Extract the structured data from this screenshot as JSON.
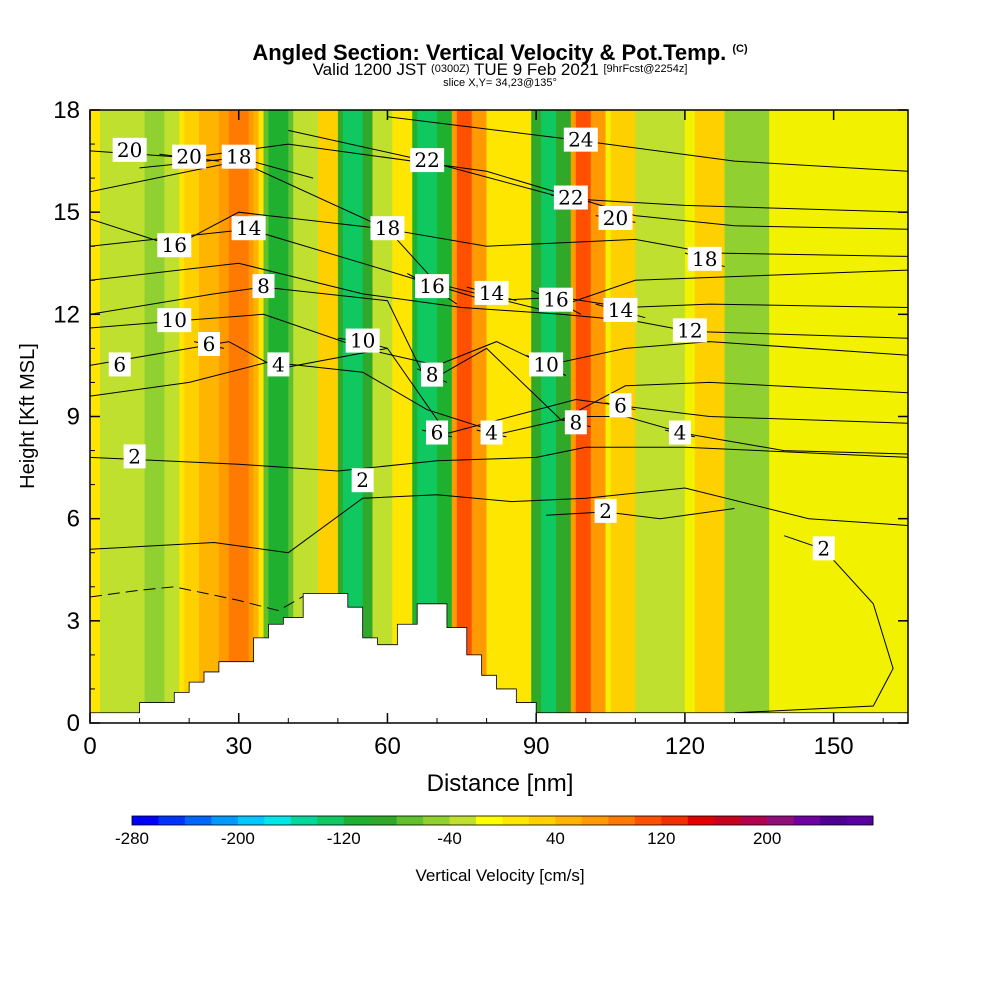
{
  "title": {
    "main": "Angled Section: Vertical Velocity & Pot.Temp.",
    "main_suffix": "(C)",
    "sub_a": "Valid 1200 JST",
    "sub_b": "(0300Z)",
    "sub_c": "TUE 9 Feb 2021",
    "sub_d": "[9hrFcst@2254z]",
    "slice": "slice X,Y= 34,23@135°"
  },
  "chart_data": {
    "type": "heatmap",
    "xlabel": "Distance [nm]",
    "ylabel": "Height [Kft MSL]",
    "xlim": [
      0,
      165
    ],
    "ylim": [
      0,
      18
    ],
    "x_ticks": [
      "0",
      "30",
      "60",
      "90",
      "120",
      "150"
    ],
    "y_ticks": [
      "0",
      "3",
      "6",
      "9",
      "12",
      "15",
      "18"
    ],
    "colorbar": {
      "label": "Vertical Velocity [cm/s]",
      "range": [
        -280,
        280
      ],
      "ticks": [
        "-280",
        "-200",
        "-120",
        "-40",
        "40",
        "120",
        "200"
      ],
      "colors": [
        "#0000ff",
        "#0033ff",
        "#0066ff",
        "#0099ff",
        "#00c8ff",
        "#00e6e6",
        "#00d79a",
        "#10c860",
        "#20b030",
        "#30a82a",
        "#60c030",
        "#90d030",
        "#c0e030",
        "#ffff00",
        "#ffe600",
        "#ffd000",
        "#ffb400",
        "#ff9a00",
        "#ff7a00",
        "#ff5000",
        "#f03000",
        "#e00000",
        "#c80020",
        "#b00050",
        "#90107a",
        "#7000a0",
        "#500090",
        "#5a00a0"
      ]
    },
    "velocity_bands": [
      {
        "x": 0,
        "w": 165,
        "value": 10,
        "color": "#f2f200"
      },
      {
        "x": 0,
        "w": 70,
        "value": 20,
        "color": "#ffe600"
      },
      {
        "x": 2,
        "w": 16,
        "value": -30,
        "color": "#c0e030"
      },
      {
        "x": 11,
        "w": 4,
        "value": -40,
        "color": "#90d030"
      },
      {
        "x": 19,
        "w": 8,
        "value": 50,
        "color": "#ffd000"
      },
      {
        "x": 22,
        "w": 12,
        "value": 60,
        "color": "#ffb400"
      },
      {
        "x": 26,
        "w": 7,
        "value": 80,
        "color": "#ff9a00"
      },
      {
        "x": 28,
        "w": 4,
        "value": 100,
        "color": "#ff7a00"
      },
      {
        "x": 35,
        "w": 8,
        "value": -60,
        "color": "#60c030"
      },
      {
        "x": 36,
        "w": 4,
        "value": -90,
        "color": "#20b030"
      },
      {
        "x": 41,
        "w": 5,
        "value": -30,
        "color": "#c0e030"
      },
      {
        "x": 46,
        "w": 4,
        "value": 40,
        "color": "#ffd000"
      },
      {
        "x": 50,
        "w": 7,
        "value": -70,
        "color": "#30a82a"
      },
      {
        "x": 51,
        "w": 4,
        "value": -100,
        "color": "#10c860"
      },
      {
        "x": 57,
        "w": 4,
        "value": -20,
        "color": "#c0e030"
      },
      {
        "x": 61,
        "w": 3,
        "value": 30,
        "color": "#ffe600"
      },
      {
        "x": 65,
        "w": 8,
        "value": -70,
        "color": "#20b030"
      },
      {
        "x": 66,
        "w": 4,
        "value": -110,
        "color": "#10c860"
      },
      {
        "x": 73,
        "w": 7,
        "value": 70,
        "color": "#ff9a00"
      },
      {
        "x": 74,
        "w": 3,
        "value": 110,
        "color": "#ff5000"
      },
      {
        "x": 80,
        "w": 9,
        "value": 20,
        "color": "#ffe600"
      },
      {
        "x": 89,
        "w": 8,
        "value": -70,
        "color": "#30a82a"
      },
      {
        "x": 91,
        "w": 3,
        "value": -100,
        "color": "#10c860"
      },
      {
        "x": 97,
        "w": 7,
        "value": 80,
        "color": "#ff9a00"
      },
      {
        "x": 98,
        "w": 3,
        "value": 120,
        "color": "#ff5000"
      },
      {
        "x": 105,
        "w": 12,
        "value": 30,
        "color": "#ffd000"
      },
      {
        "x": 110,
        "w": 10,
        "value": -30,
        "color": "#c0e030"
      },
      {
        "x": 122,
        "w": 6,
        "value": 40,
        "color": "#ffd000"
      },
      {
        "x": 128,
        "w": 9,
        "value": -40,
        "color": "#90d030"
      }
    ],
    "terrain_profile": [
      [
        0,
        0.3
      ],
      [
        10,
        0.6
      ],
      [
        17,
        0.9
      ],
      [
        20,
        1.2
      ],
      [
        23,
        1.5
      ],
      [
        26,
        1.8
      ],
      [
        30,
        1.8
      ],
      [
        33,
        2.5
      ],
      [
        36,
        2.9
      ],
      [
        39,
        3.1
      ],
      [
        43,
        3.8
      ],
      [
        52,
        3.4
      ],
      [
        55,
        2.5
      ],
      [
        58,
        2.3
      ],
      [
        62,
        2.9
      ],
      [
        66,
        3.5
      ],
      [
        72,
        2.8
      ],
      [
        76,
        2.0
      ],
      [
        79,
        1.4
      ],
      [
        82,
        1.0
      ],
      [
        86,
        0.6
      ],
      [
        90,
        0.3
      ],
      [
        165,
        0.3
      ]
    ],
    "isentropes_c": [
      {
        "level": "2",
        "label_at": [
          9,
          7.8
        ],
        "points": [
          [
            0,
            7.8
          ],
          [
            30,
            7.6
          ],
          [
            50,
            7.4
          ],
          [
            70,
            7.7
          ],
          [
            90,
            7.8
          ],
          [
            100,
            8.1
          ],
          [
            120,
            8.1
          ],
          [
            165,
            7.8
          ]
        ]
      },
      {
        "level": "2",
        "label_at": [
          55,
          7.1
        ],
        "points": [
          [
            0,
            5.1
          ],
          [
            25,
            5.3
          ],
          [
            40,
            5.0
          ],
          [
            55,
            6.6
          ],
          [
            70,
            6.7
          ],
          [
            85,
            6.5
          ],
          [
            100,
            6.6
          ],
          [
            120,
            6.9
          ],
          [
            145,
            6.0
          ],
          [
            165,
            5.8
          ]
        ]
      },
      {
        "level": "2",
        "label_at": [
          104,
          6.2
        ],
        "points": [
          [
            92,
            6.1
          ],
          [
            104,
            6.2
          ],
          [
            115,
            6.0
          ],
          [
            130,
            6.3
          ]
        ]
      },
      {
        "level": "2",
        "label_at": [
          148,
          5.1
        ],
        "points": [
          [
            140,
            5.5
          ],
          [
            148,
            5.1
          ],
          [
            158,
            3.5
          ],
          [
            162,
            1.6
          ],
          [
            158,
            0.5
          ],
          [
            130,
            0.3
          ]
        ]
      },
      {
        "level": "4",
        "label_at": [
          38,
          10.5
        ],
        "points": [
          [
            0,
            9.6
          ],
          [
            20,
            10.0
          ],
          [
            36,
            10.6
          ],
          [
            55,
            10.3
          ],
          [
            68,
            9.2
          ],
          [
            83,
            8.5
          ],
          [
            98,
            9.0
          ],
          [
            108,
            9.0
          ],
          [
            120,
            8.5
          ],
          [
            140,
            8.0
          ],
          [
            165,
            7.9
          ]
        ]
      },
      {
        "level": "6",
        "label_at": [
          6,
          10.5
        ],
        "points": [
          [
            0,
            10.5
          ],
          [
            20,
            11.0
          ],
          [
            28,
            11.2
          ],
          [
            38,
            10.4
          ],
          [
            60,
            11.0
          ],
          [
            72,
            8.5
          ],
          [
            85,
            9.0
          ],
          [
            98,
            9.5
          ],
          [
            108,
            9.3
          ],
          [
            125,
            9.0
          ],
          [
            165,
            8.8
          ]
        ]
      },
      {
        "level": "8",
        "label_at": [
          35,
          12.8
        ],
        "points": [
          [
            0,
            12.0
          ],
          [
            25,
            12.6
          ],
          [
            35,
            12.8
          ],
          [
            60,
            12.4
          ],
          [
            68,
            10.0
          ],
          [
            80,
            11.0
          ],
          [
            95,
            8.9
          ],
          [
            108,
            9.9
          ],
          [
            125,
            10.0
          ],
          [
            165,
            9.7
          ]
        ]
      },
      {
        "level": "10",
        "label_at": [
          17,
          11.8
        ],
        "points": [
          [
            0,
            11.6
          ],
          [
            17,
            11.8
          ],
          [
            35,
            12.0
          ],
          [
            55,
            11.0
          ],
          [
            70,
            10.5
          ],
          [
            82,
            11.2
          ],
          [
            92,
            10.5
          ],
          [
            108,
            11.0
          ],
          [
            125,
            11.2
          ],
          [
            165,
            10.8
          ]
        ]
      },
      {
        "level": "12",
        "label_at": [
          121,
          11.5
        ],
        "points": [
          [
            0,
            13.0
          ],
          [
            30,
            13.5
          ],
          [
            55,
            12.6
          ],
          [
            75,
            12.2
          ],
          [
            95,
            12.0
          ],
          [
            110,
            11.8
          ],
          [
            121,
            11.5
          ],
          [
            165,
            11.3
          ]
        ]
      },
      {
        "level": "14",
        "label_at": [
          32,
          14.5
        ],
        "points": [
          [
            0,
            14.0
          ],
          [
            32,
            14.5
          ],
          [
            55,
            13.5
          ],
          [
            80,
            12.4
          ],
          [
            95,
            12.5
          ],
          [
            108,
            12.2
          ],
          [
            125,
            12.3
          ],
          [
            165,
            12.2
          ]
        ]
      },
      {
        "level": "16",
        "label_at": [
          17,
          14.0
        ],
        "points": [
          [
            0,
            14.8
          ],
          [
            17,
            14.0
          ],
          [
            30,
            15.0
          ],
          [
            60,
            14.5
          ],
          [
            70,
            12.9
          ],
          [
            92,
            12.1
          ],
          [
            110,
            13.0
          ],
          [
            165,
            13.3
          ]
        ]
      },
      {
        "level": "18",
        "label_at": [
          60,
          14.5
        ],
        "points": [
          [
            0,
            15.6
          ],
          [
            30,
            16.5
          ],
          [
            60,
            14.5
          ],
          [
            80,
            14.0
          ],
          [
            110,
            14.2
          ],
          [
            125,
            13.8
          ],
          [
            165,
            13.7
          ]
        ]
      },
      {
        "level": "18",
        "label_at": [
          30,
          16.6
        ],
        "points": [
          [
            10,
            16.3
          ],
          [
            30,
            16.6
          ],
          [
            45,
            16.0
          ]
        ]
      },
      {
        "level": "20",
        "label_at": [
          8,
          16.8
        ],
        "points": [
          [
            0,
            16.8
          ],
          [
            20,
            16.6
          ],
          [
            40,
            17.0
          ],
          [
            80,
            16.2
          ],
          [
            110,
            14.9
          ],
          [
            130,
            14.6
          ],
          [
            165,
            14.5
          ]
        ]
      },
      {
        "level": "20",
        "label_at": [
          20,
          16.6
        ],
        "points": [
          [
            14,
            16.7
          ],
          [
            20,
            16.6
          ],
          [
            26,
            16.5
          ]
        ]
      },
      {
        "level": "22",
        "label_at": [
          68,
          16.5
        ],
        "points": [
          [
            40,
            17.4
          ],
          [
            68,
            16.5
          ],
          [
            96,
            15.4
          ],
          [
            120,
            15.2
          ],
          [
            165,
            15.0
          ]
        ]
      },
      {
        "level": "24",
        "label_at": [
          99,
          17.1
        ],
        "points": [
          [
            60,
            17.8
          ],
          [
            99,
            17.1
          ],
          [
            130,
            16.5
          ],
          [
            165,
            16.2
          ]
        ]
      },
      {
        "level": "16",
        "label_at": [
          69,
          12.8
        ],
        "points": [
          [
            64,
            13.2
          ],
          [
            69,
            12.8
          ],
          [
            74,
            12.3
          ]
        ]
      },
      {
        "level": "14",
        "label_at": [
          81,
          12.6
        ],
        "points": [
          [
            76,
            12.8
          ],
          [
            81,
            12.6
          ],
          [
            86,
            12.4
          ]
        ]
      },
      {
        "level": "16",
        "label_at": [
          94,
          12.4
        ],
        "points": [
          [
            89,
            12.7
          ],
          [
            94,
            12.4
          ],
          [
            99,
            12.0
          ]
        ]
      },
      {
        "level": "14",
        "label_at": [
          107,
          12.1
        ],
        "points": [
          [
            102,
            12.3
          ],
          [
            107,
            12.1
          ],
          [
            112,
            11.9
          ]
        ]
      },
      {
        "level": "10",
        "label_at": [
          55,
          11.2
        ],
        "points": [
          [
            50,
            11.3
          ],
          [
            55,
            11.2
          ],
          [
            60,
            11.0
          ]
        ]
      },
      {
        "level": "10",
        "label_at": [
          92,
          10.5
        ],
        "points": [
          [
            88,
            10.8
          ],
          [
            92,
            10.5
          ],
          [
            96,
            10.2
          ]
        ]
      },
      {
        "level": "8",
        "label_at": [
          69,
          10.2
        ],
        "points": [
          [
            66,
            10.4
          ],
          [
            69,
            10.2
          ],
          [
            72,
            10.0
          ]
        ]
      },
      {
        "level": "8",
        "label_at": [
          98,
          8.8
        ],
        "points": [
          [
            95,
            8.9
          ],
          [
            98,
            8.8
          ],
          [
            101,
            8.7
          ]
        ]
      },
      {
        "level": "6",
        "label_at": [
          24,
          11.1
        ],
        "points": [
          [
            21,
            11.2
          ],
          [
            24,
            11.1
          ],
          [
            27,
            11.0
          ]
        ]
      },
      {
        "level": "6",
        "label_at": [
          70,
          8.5
        ],
        "points": [
          [
            67,
            8.6
          ],
          [
            70,
            8.5
          ],
          [
            73,
            8.4
          ]
        ]
      },
      {
        "level": "6",
        "label_at": [
          107,
          9.3
        ],
        "points": [
          [
            104,
            9.4
          ],
          [
            107,
            9.3
          ],
          [
            110,
            9.2
          ]
        ]
      },
      {
        "level": "4",
        "label_at": [
          81,
          8.5
        ],
        "points": [
          [
            78,
            8.6
          ],
          [
            81,
            8.5
          ],
          [
            84,
            8.4
          ]
        ]
      },
      {
        "level": "4",
        "label_at": [
          119,
          8.5
        ],
        "points": [
          [
            116,
            8.6
          ],
          [
            119,
            8.5
          ],
          [
            122,
            8.4
          ]
        ]
      },
      {
        "level": "18",
        "label_at": [
          124,
          13.6
        ],
        "points": [
          [
            120,
            13.8
          ],
          [
            124,
            13.6
          ],
          [
            128,
            13.4
          ]
        ]
      },
      {
        "level": "20",
        "label_at": [
          106,
          14.8
        ],
        "points": [
          [
            102,
            14.9
          ],
          [
            106,
            14.8
          ],
          [
            110,
            14.7
          ]
        ]
      },
      {
        "level": "22",
        "label_at": [
          97,
          15.4
        ],
        "points": [
          [
            93,
            15.5
          ],
          [
            97,
            15.4
          ],
          [
            101,
            15.3
          ]
        ]
      }
    ],
    "dashed_contour": {
      "points": [
        [
          0,
          3.7
        ],
        [
          10,
          3.9
        ],
        [
          17,
          4.0
        ],
        [
          30,
          3.6
        ],
        [
          38,
          3.3
        ],
        [
          44,
          3.8
        ]
      ]
    },
    "grid": false,
    "legend": "colorbar-bottom"
  }
}
